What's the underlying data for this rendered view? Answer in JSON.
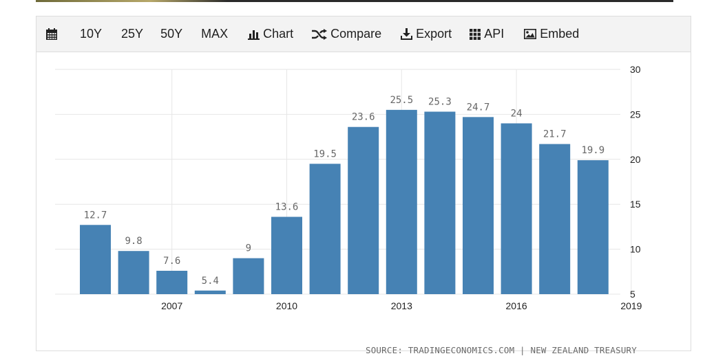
{
  "toolbar": {
    "calendar_icon": "calendar-icon",
    "btn_10y": "10Y",
    "btn_25y": "25Y",
    "btn_50y": "50Y",
    "btn_max": "MAX",
    "chart_label": "Chart",
    "compare_label": "Compare",
    "export_label": "Export",
    "api_label": "API",
    "embed_label": "Embed"
  },
  "source_text": "SOURCE: TRADINGECONOMICS.COM | NEW ZEALAND TREASURY",
  "colors": {
    "bar": "#4682b4",
    "grid": "#e6e6e6",
    "label": "#666666",
    "axis_text": "#222222"
  },
  "chart_data": {
    "type": "bar",
    "title": "",
    "xlabel": "",
    "ylabel": "",
    "categories": [
      "2005",
      "2006",
      "2007",
      "2008",
      "2009",
      "2010",
      "2011",
      "2012",
      "2013",
      "2014",
      "2015",
      "2016",
      "2017",
      "2018"
    ],
    "values": [
      12.7,
      9.8,
      7.6,
      5.4,
      9,
      13.6,
      19.5,
      23.6,
      25.5,
      25.3,
      24.7,
      24,
      21.7,
      19.9
    ],
    "data_labels": [
      "12.7",
      "9.8",
      "7.6",
      "5.4",
      "9",
      "13.6",
      "19.5",
      "23.6",
      "25.5",
      "25.3",
      "24.7",
      "24",
      "21.7",
      "19.9"
    ],
    "ylim": [
      5,
      30
    ],
    "y_ticks": [
      "5",
      "10",
      "15",
      "20",
      "25",
      "30"
    ],
    "x_ticks": [
      "2007",
      "2010",
      "2013",
      "2016",
      "2019"
    ],
    "grid": true,
    "y_axis_side": "right"
  }
}
